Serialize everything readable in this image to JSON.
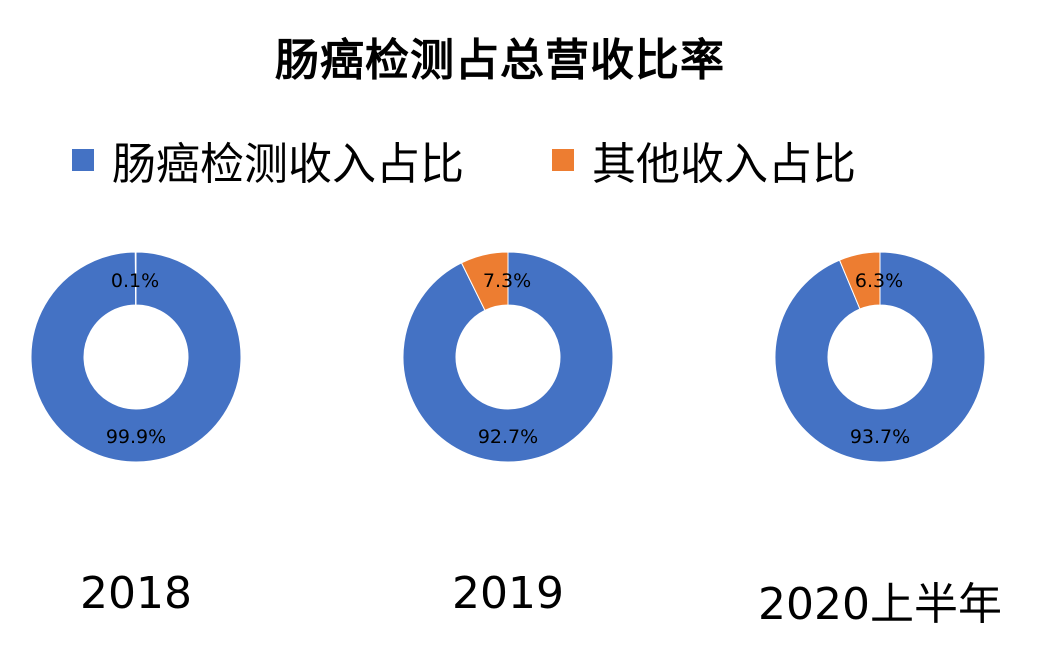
{
  "chart_data": {
    "type": "pie",
    "subtype": "donut",
    "title": "肠癌检测占总营收比率",
    "legend": {
      "placement": "top",
      "entries": [
        {
          "name": "肠癌检测收入占比",
          "color": "#4472C4"
        },
        {
          "name": "其他收入占比",
          "color": "#ED7D31"
        }
      ]
    },
    "charts": [
      {
        "label": "2018",
        "slices": [
          {
            "name": "肠癌检测收入占比",
            "value": 99.9,
            "label": "99.9%"
          },
          {
            "name": "其他收入占比",
            "value": 0.1,
            "label": "0.1%"
          }
        ]
      },
      {
        "label": "2019",
        "slices": [
          {
            "name": "肠癌检测收入占比",
            "value": 92.7,
            "label": "92.7%"
          },
          {
            "name": "其他收入占比",
            "value": 7.3,
            "label": "7.3%"
          }
        ]
      },
      {
        "label": "2020上半年",
        "slices": [
          {
            "name": "肠癌检测收入占比",
            "value": 93.7,
            "label": "93.7%"
          },
          {
            "name": "其他收入占比",
            "value": 6.3,
            "label": "6.3%"
          }
        ]
      }
    ]
  }
}
